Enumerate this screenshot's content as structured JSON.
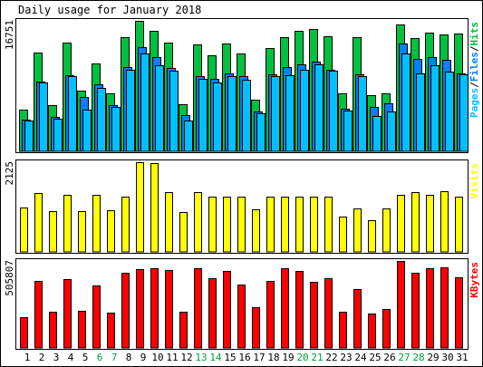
{
  "title": "Daily usage for January 2018",
  "chart_data": [
    {
      "type": "bar",
      "panel": "hits-files-pages",
      "categories": [
        "1",
        "2",
        "3",
        "4",
        "5",
        "6",
        "7",
        "8",
        "9",
        "10",
        "11",
        "12",
        "13",
        "14",
        "15",
        "16",
        "17",
        "18",
        "19",
        "20",
        "21",
        "22",
        "23",
        "24",
        "25",
        "26",
        "27",
        "28",
        "29",
        "30",
        "31"
      ],
      "weekend_days": [
        "6",
        "7",
        "13",
        "14",
        "20",
        "21",
        "27",
        "28"
      ],
      "y_max_label": "16751",
      "ylim": [
        0,
        16751
      ],
      "right_labels": [
        {
          "text": "Pages",
          "color": "#00c0ff"
        },
        {
          "text": "/",
          "color": "#000000"
        },
        {
          "text": "Files",
          "color": "#0080ff"
        },
        {
          "text": "/",
          "color": "#000000"
        },
        {
          "text": "Hits",
          "color": "#00c040"
        }
      ],
      "series": [
        {
          "name": "Hits",
          "color": "#00c040",
          "values": [
            5400,
            12700,
            5900,
            14000,
            7800,
            11300,
            7400,
            14700,
            16700,
            15500,
            14000,
            6000,
            13700,
            12300,
            13900,
            12600,
            6600,
            13300,
            14600,
            15500,
            15700,
            14800,
            7400,
            14600,
            7200,
            7500,
            16300,
            14500,
            15200,
            15000,
            15100
          ]
        },
        {
          "name": "Files",
          "color": "#0080ff",
          "values": [
            4100,
            9000,
            4400,
            9800,
            7000,
            8600,
            5900,
            10800,
            13400,
            12100,
            10700,
            4700,
            9600,
            9300,
            10000,
            9600,
            5100,
            9900,
            10800,
            11200,
            11500,
            10500,
            5500,
            9900,
            5700,
            6200,
            13900,
            11900,
            12100,
            11700,
            10000
          ]
        },
        {
          "name": "Pages",
          "color": "#00c0ff",
          "values": [
            4000,
            8800,
            4200,
            9600,
            5300,
            8200,
            5700,
            10500,
            12600,
            11100,
            10300,
            4000,
            9300,
            8800,
            9600,
            9200,
            4900,
            9700,
            9800,
            10500,
            11200,
            10300,
            5200,
            9700,
            4500,
            5100,
            12600,
            10000,
            11000,
            10200,
            9900
          ]
        }
      ]
    },
    {
      "type": "bar",
      "panel": "visits",
      "categories": [
        "1",
        "2",
        "3",
        "4",
        "5",
        "6",
        "7",
        "8",
        "9",
        "10",
        "11",
        "12",
        "13",
        "14",
        "15",
        "16",
        "17",
        "18",
        "19",
        "20",
        "21",
        "22",
        "23",
        "24",
        "25",
        "26",
        "27",
        "28",
        "29",
        "30",
        "31"
      ],
      "y_max_label": "2125",
      "ylim": [
        0,
        2125
      ],
      "right_labels": [
        {
          "text": "Visits",
          "color": "#ffff00"
        }
      ],
      "series": [
        {
          "name": "Visits",
          "color": "#ffff00",
          "values": [
            1050,
            1400,
            960,
            1350,
            960,
            1350,
            980,
            1310,
            2125,
            2110,
            1410,
            950,
            1420,
            1300,
            1310,
            1310,
            1000,
            1300,
            1320,
            1320,
            1320,
            1310,
            830,
            1020,
            760,
            1040,
            1360,
            1420,
            1360,
            1430,
            1310
          ]
        }
      ]
    },
    {
      "type": "bar",
      "panel": "kbytes",
      "categories": [
        "1",
        "2",
        "3",
        "4",
        "5",
        "6",
        "7",
        "8",
        "9",
        "10",
        "11",
        "12",
        "13",
        "14",
        "15",
        "16",
        "17",
        "18",
        "19",
        "20",
        "21",
        "22",
        "23",
        "24",
        "25",
        "26",
        "27",
        "28",
        "29",
        "30",
        "31"
      ],
      "y_max_label": "505807",
      "ylim": [
        0,
        505807
      ],
      "right_labels": [
        {
          "text": "KBytes",
          "color": "#ff0000"
        }
      ],
      "series": [
        {
          "name": "KBytes",
          "color": "#ff0000",
          "values": [
            180000,
            390000,
            210000,
            400000,
            215000,
            365000,
            205000,
            435000,
            460000,
            465000,
            455000,
            210000,
            465000,
            405000,
            450000,
            370000,
            235000,
            390000,
            465000,
            450000,
            385000,
            405000,
            210000,
            345000,
            200000,
            225000,
            505807,
            435000,
            465000,
            470000,
            410000
          ]
        }
      ]
    }
  ]
}
